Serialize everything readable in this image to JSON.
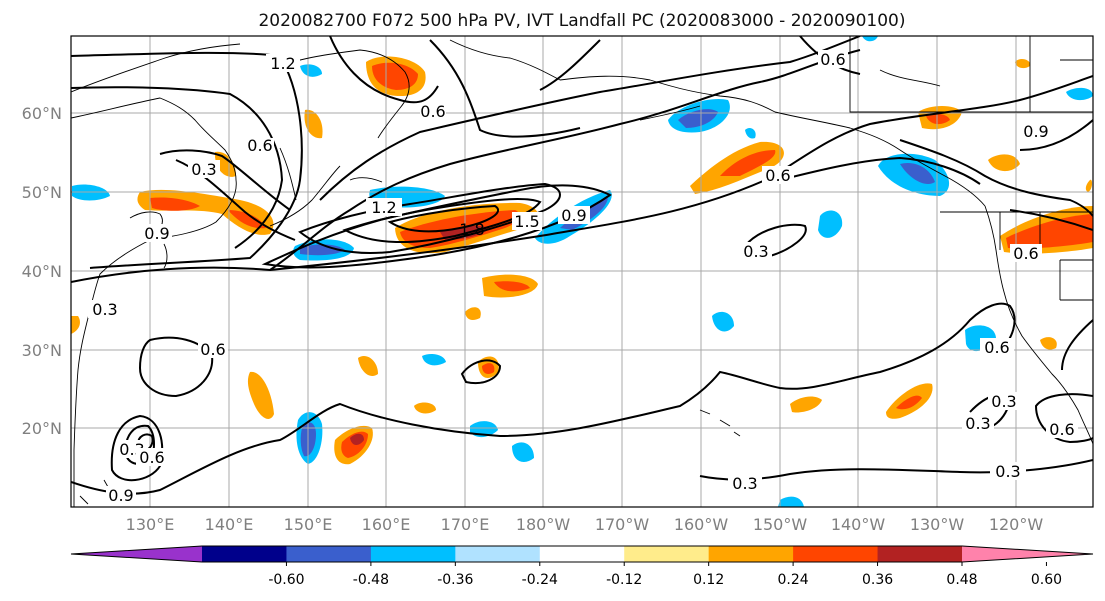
{
  "title": "2020082700 F072 500 hPa PV, IVT Landfall PC (2020083000 - 2020090100)",
  "lat_labels": [
    "60°N",
    "50°N",
    "40°N",
    "30°N",
    "20°N"
  ],
  "lon_labels": [
    "130°E",
    "140°E",
    "150°E",
    "160°E",
    "170°E",
    "180°W",
    "170°W",
    "160°W",
    "150°W",
    "140°W",
    "130°W",
    "120°W"
  ],
  "colorbar": {
    "colors": [
      "#9932cc",
      "#00008b",
      "#3a5fcd",
      "#00bfff",
      "#b0e2ff",
      "#ffffff",
      "#ffec8b",
      "#ffa500",
      "#ff4500",
      "#b22222",
      "#ff82ab"
    ],
    "tick_labels": [
      "-0.60",
      "-0.48",
      "-0.36",
      "-0.24",
      "-0.12",
      "0.12",
      "0.24",
      "0.36",
      "0.48",
      "0.60"
    ]
  },
  "contour_labels": [
    "1.2",
    "0.6",
    "0.6",
    "0.3",
    "0.6",
    "0.9",
    "1.2",
    "1.8",
    "1.5",
    "0.9",
    "0.6",
    "0.3",
    "0.6",
    "0.9",
    "0.3",
    "0.6",
    "0.3",
    "0.6",
    "0.9",
    "0.3",
    "0.3",
    "0.6",
    "0.3",
    "0.6",
    "0.3"
  ]
}
